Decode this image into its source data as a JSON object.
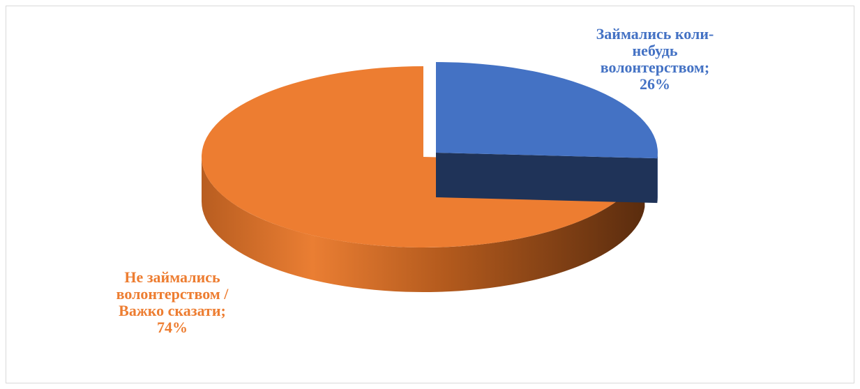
{
  "chart_data": {
    "type": "pie",
    "style": "3d-exploded",
    "slices": [
      {
        "label_lines": [
          "Займались коли-",
          "небудь",
          "волонтерством;"
        ],
        "value": 26,
        "value_label": "26%",
        "color": "#4472c4"
      },
      {
        "label_lines": [
          "Не займались",
          "волонтерством /",
          "Важко сказати;"
        ],
        "value": 74,
        "value_label": "74%",
        "color": "#ed7d31"
      }
    ],
    "title": "",
    "legend": "none",
    "data_labels": "outside, category and percentage"
  }
}
